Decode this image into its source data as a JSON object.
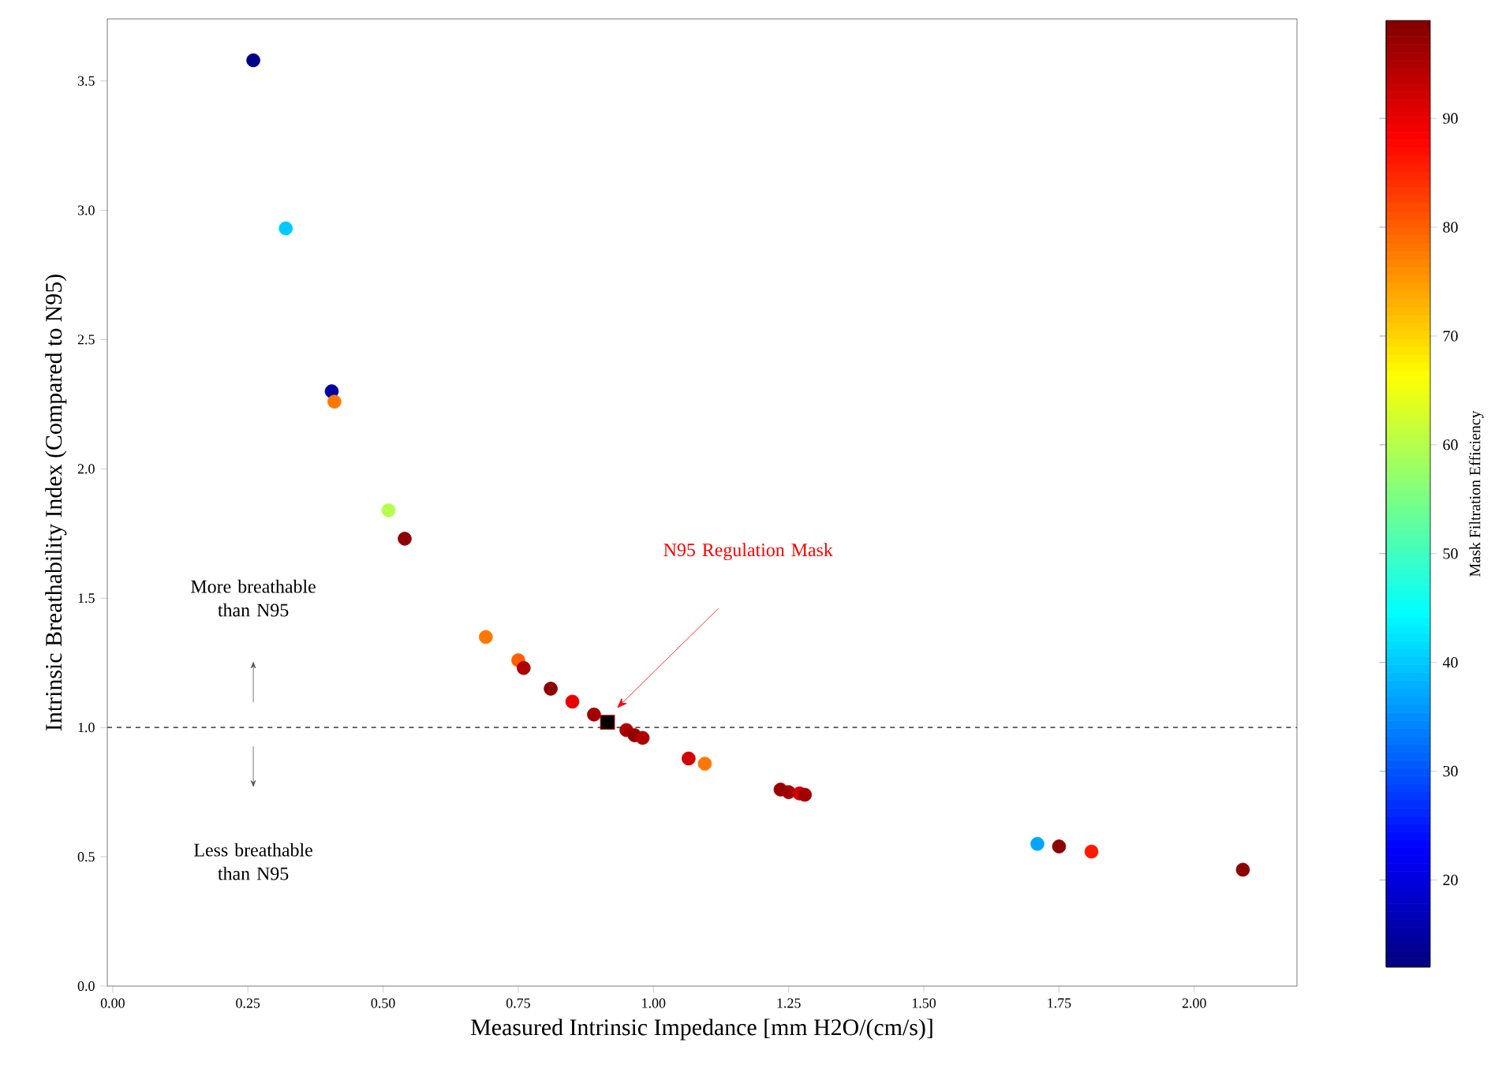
{
  "chart_data": {
    "type": "scatter",
    "xlabel": "Measured Intrinsic Impedance [mm H2O/(cm/s)]",
    "ylabel": "Intrinsic Breathability Index (Compared to N95)",
    "clabel": "Mask Filtration Efficiency",
    "xlim": [
      -0.01,
      2.19
    ],
    "ylim": [
      0,
      3.74
    ],
    "xticks": [
      {
        "value": 0,
        "label": "0.00"
      },
      {
        "value": 0.25,
        "label": "0.25"
      },
      {
        "value": 0.5,
        "label": "0.50"
      },
      {
        "value": 0.75,
        "label": "0.75"
      },
      {
        "value": 1,
        "label": "1.00"
      },
      {
        "value": 1.25,
        "label": "1.25"
      },
      {
        "value": 1.5,
        "label": "1.50"
      },
      {
        "value": 1.75,
        "label": "1.75"
      },
      {
        "value": 2,
        "label": "2.00"
      }
    ],
    "yticks": [
      {
        "value": 0,
        "label": "0.0"
      },
      {
        "value": 0.5,
        "label": "0.5"
      },
      {
        "value": 1,
        "label": "1.0"
      },
      {
        "value": 1.5,
        "label": "1.5"
      },
      {
        "value": 2,
        "label": "2.0"
      },
      {
        "value": 2.5,
        "label": "2.5"
      },
      {
        "value": 3,
        "label": "3.0"
      },
      3.5
    ],
    "clim": [
      12,
      99
    ],
    "cticks": [
      20,
      30,
      40,
      50,
      60,
      70,
      80,
      90
    ],
    "series": [
      {
        "marker": "circle",
        "x": [
          0.26,
          0.32,
          0.405,
          0.41,
          0.51,
          0.54,
          0.69,
          0.75,
          0.76,
          0.81,
          0.85,
          0.89,
          0.95,
          0.965,
          0.98,
          1.065,
          1.095,
          1.235,
          1.25,
          1.27,
          1.28,
          1.71,
          1.75,
          1.81,
          2.09
        ],
        "values": [
          3.58,
          2.93,
          2.3,
          2.26,
          1.84,
          1.73,
          1.35,
          1.26,
          1.23,
          1.15,
          1.1,
          1.05,
          0.99,
          0.97,
          0.96,
          0.88,
          0.86,
          0.76,
          0.75,
          0.745,
          0.74,
          0.55,
          0.54,
          0.52,
          0.45
        ],
        "cvalues": [
          13,
          40,
          15,
          78,
          60,
          98,
          78,
          80,
          95,
          98,
          90,
          96,
          95,
          97,
          95,
          92,
          78,
          97,
          96,
          92,
          96,
          37,
          98,
          86,
          98
        ],
        "colors": [
          "#00008c",
          "#00c9ff",
          "#0000a3",
          "#ff7700",
          "#b4ff4b",
          "#8c0000",
          "#ff7700",
          "#ff5f00",
          "#af0000",
          "#8c0000",
          "#e90000",
          "#a30000",
          "#af0000",
          "#970000",
          "#af0000",
          "#d20000",
          "#ff7700",
          "#970000",
          "#a30000",
          "#d20000",
          "#a30000",
          "#00a6ff",
          "#8c0000",
          "#ff1900",
          "#8c0000"
        ]
      },
      {
        "marker": "square",
        "color": "#000000",
        "x": [
          0.915
        ],
        "values": [
          1.02
        ]
      }
    ],
    "ref_lines": [
      {
        "axis": "y",
        "value": 1,
        "color": "#555555",
        "line_style": "dashed"
      }
    ],
    "annotations": [
      "N95 Regulation Mask",
      "More breathable than N95",
      "Less breathable than N95"
    ]
  }
}
